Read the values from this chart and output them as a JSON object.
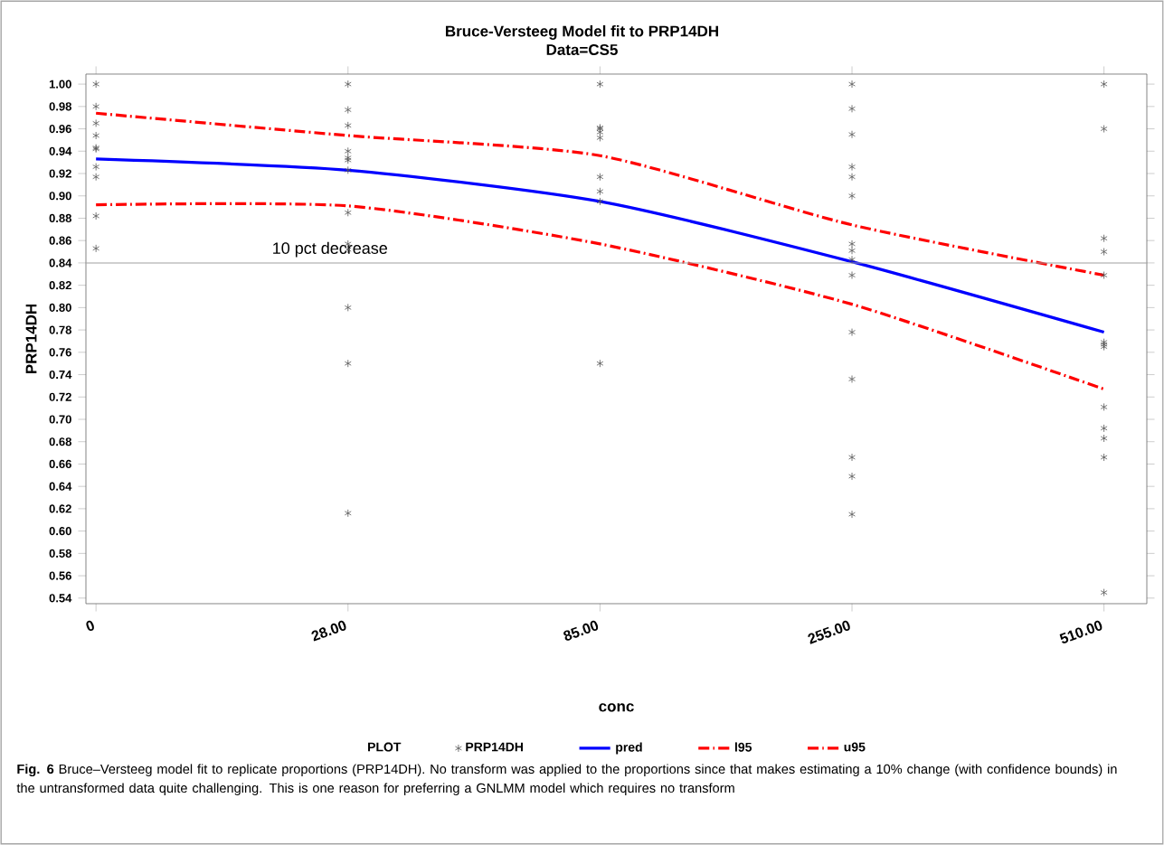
{
  "chart_data": {
    "type": "line",
    "title": "Bruce-Versteeg Model fit to PRP14DH",
    "subtitle": "Data=CS5",
    "xlabel": "conc",
    "ylabel": "PRP14DH",
    "legend_title": "PLOT",
    "legend": "bottom",
    "categories": [
      "0",
      "28.00",
      "85.00",
      "255.00",
      "510.00"
    ],
    "ylim": [
      0.535,
      1.009
    ],
    "yticks": [
      {
        "value": 0.54,
        "label": "0.54"
      },
      {
        "value": 0.56,
        "label": "0.56"
      },
      {
        "value": 0.58,
        "label": "0.58"
      },
      {
        "value": 0.6,
        "label": "0.60"
      },
      {
        "value": 0.62,
        "label": "0.62"
      },
      {
        "value": 0.64,
        "label": "0.64"
      },
      {
        "value": 0.66,
        "label": "0.66"
      },
      {
        "value": 0.68,
        "label": "0.68"
      },
      {
        "value": 0.7,
        "label": "0.70"
      },
      {
        "value": 0.72,
        "label": "0.72"
      },
      {
        "value": 0.74,
        "label": "0.74"
      },
      {
        "value": 0.76,
        "label": "0.76"
      },
      {
        "value": 0.78,
        "label": "0.78"
      },
      {
        "value": 0.8,
        "label": "0.80"
      },
      {
        "value": 0.82,
        "label": "0.82"
      },
      {
        "value": 0.84,
        "label": "0.84"
      },
      {
        "value": 0.86,
        "label": "0.86"
      },
      {
        "value": 0.88,
        "label": "0.88"
      },
      {
        "value": 0.9,
        "label": "0.90"
      },
      {
        "value": 0.92,
        "label": "0.92"
      },
      {
        "value": 0.94,
        "label": "0.94"
      },
      {
        "value": 0.96,
        "label": "0.96"
      },
      {
        "value": 0.98,
        "label": "0.98"
      },
      {
        "value": 1.0,
        "label": "1.00"
      }
    ],
    "ref_lines": [
      {
        "axis": "y",
        "value": 0.84,
        "label": "10 pct decrease",
        "color": "#a0a0a0"
      }
    ],
    "series": [
      {
        "name": "PRP14DH",
        "type": "scatter",
        "marker": "cross",
        "color": "#555555",
        "x": [
          "0",
          "0",
          "0",
          "0",
          "0",
          "0",
          "0",
          "0",
          "0",
          "0",
          "28.00",
          "28.00",
          "28.00",
          "28.00",
          "28.00",
          "28.00",
          "28.00",
          "28.00",
          "28.00",
          "28.00",
          "28.00",
          "28.00",
          "28.00",
          "85.00",
          "85.00",
          "85.00",
          "85.00",
          "85.00",
          "85.00",
          "85.00",
          "85.00",
          "85.00",
          "255.00",
          "255.00",
          "255.00",
          "255.00",
          "255.00",
          "255.00",
          "255.00",
          "255.00",
          "255.00",
          "255.00",
          "255.00",
          "255.00",
          "255.00",
          "255.00",
          "255.00",
          "510.00",
          "510.00",
          "510.00",
          "510.00",
          "510.00",
          "510.00",
          "510.00",
          "510.00",
          "510.00",
          "510.00",
          "510.00",
          "510.00",
          "510.00"
        ],
        "values": [
          1.0,
          0.98,
          0.965,
          0.954,
          0.943,
          0.942,
          0.926,
          0.917,
          0.882,
          0.853,
          1.0,
          0.977,
          0.963,
          0.94,
          0.934,
          0.932,
          0.923,
          0.885,
          0.857,
          0.852,
          0.8,
          0.75,
          0.616,
          1.0,
          0.961,
          0.96,
          0.957,
          0.952,
          0.917,
          0.904,
          0.895,
          0.75,
          1.0,
          0.978,
          0.955,
          0.926,
          0.917,
          0.9,
          0.857,
          0.851,
          0.843,
          0.829,
          0.778,
          0.736,
          0.666,
          0.649,
          0.615,
          1.0,
          0.96,
          0.862,
          0.85,
          0.829,
          0.769,
          0.767,
          0.765,
          0.711,
          0.692,
          0.683,
          0.666,
          0.545
        ]
      },
      {
        "name": "pred",
        "color": "#0000ff",
        "line_style": "solid",
        "values": [
          0.933,
          0.923,
          0.895,
          0.841,
          0.778
        ]
      },
      {
        "name": "l95",
        "color": "#ff0000",
        "line_style": "dashed",
        "values": [
          0.892,
          0.891,
          0.857,
          0.803,
          0.727
        ]
      },
      {
        "name": "u95",
        "color": "#ff0000",
        "line_style": "dashed",
        "values": [
          0.974,
          0.954,
          0.936,
          0.874,
          0.829
        ]
      }
    ],
    "annotations": [
      "**Fig. 6** Bruce–Versteeg model fit to replicate proportions (PRP14DH). No transform was applied to the proportions since that makes estimating a 10% change (with confidence bounds) in the untransformed data quite challenging. This is one reason for preferring a GNLMM model which requires no transform"
    ]
  }
}
